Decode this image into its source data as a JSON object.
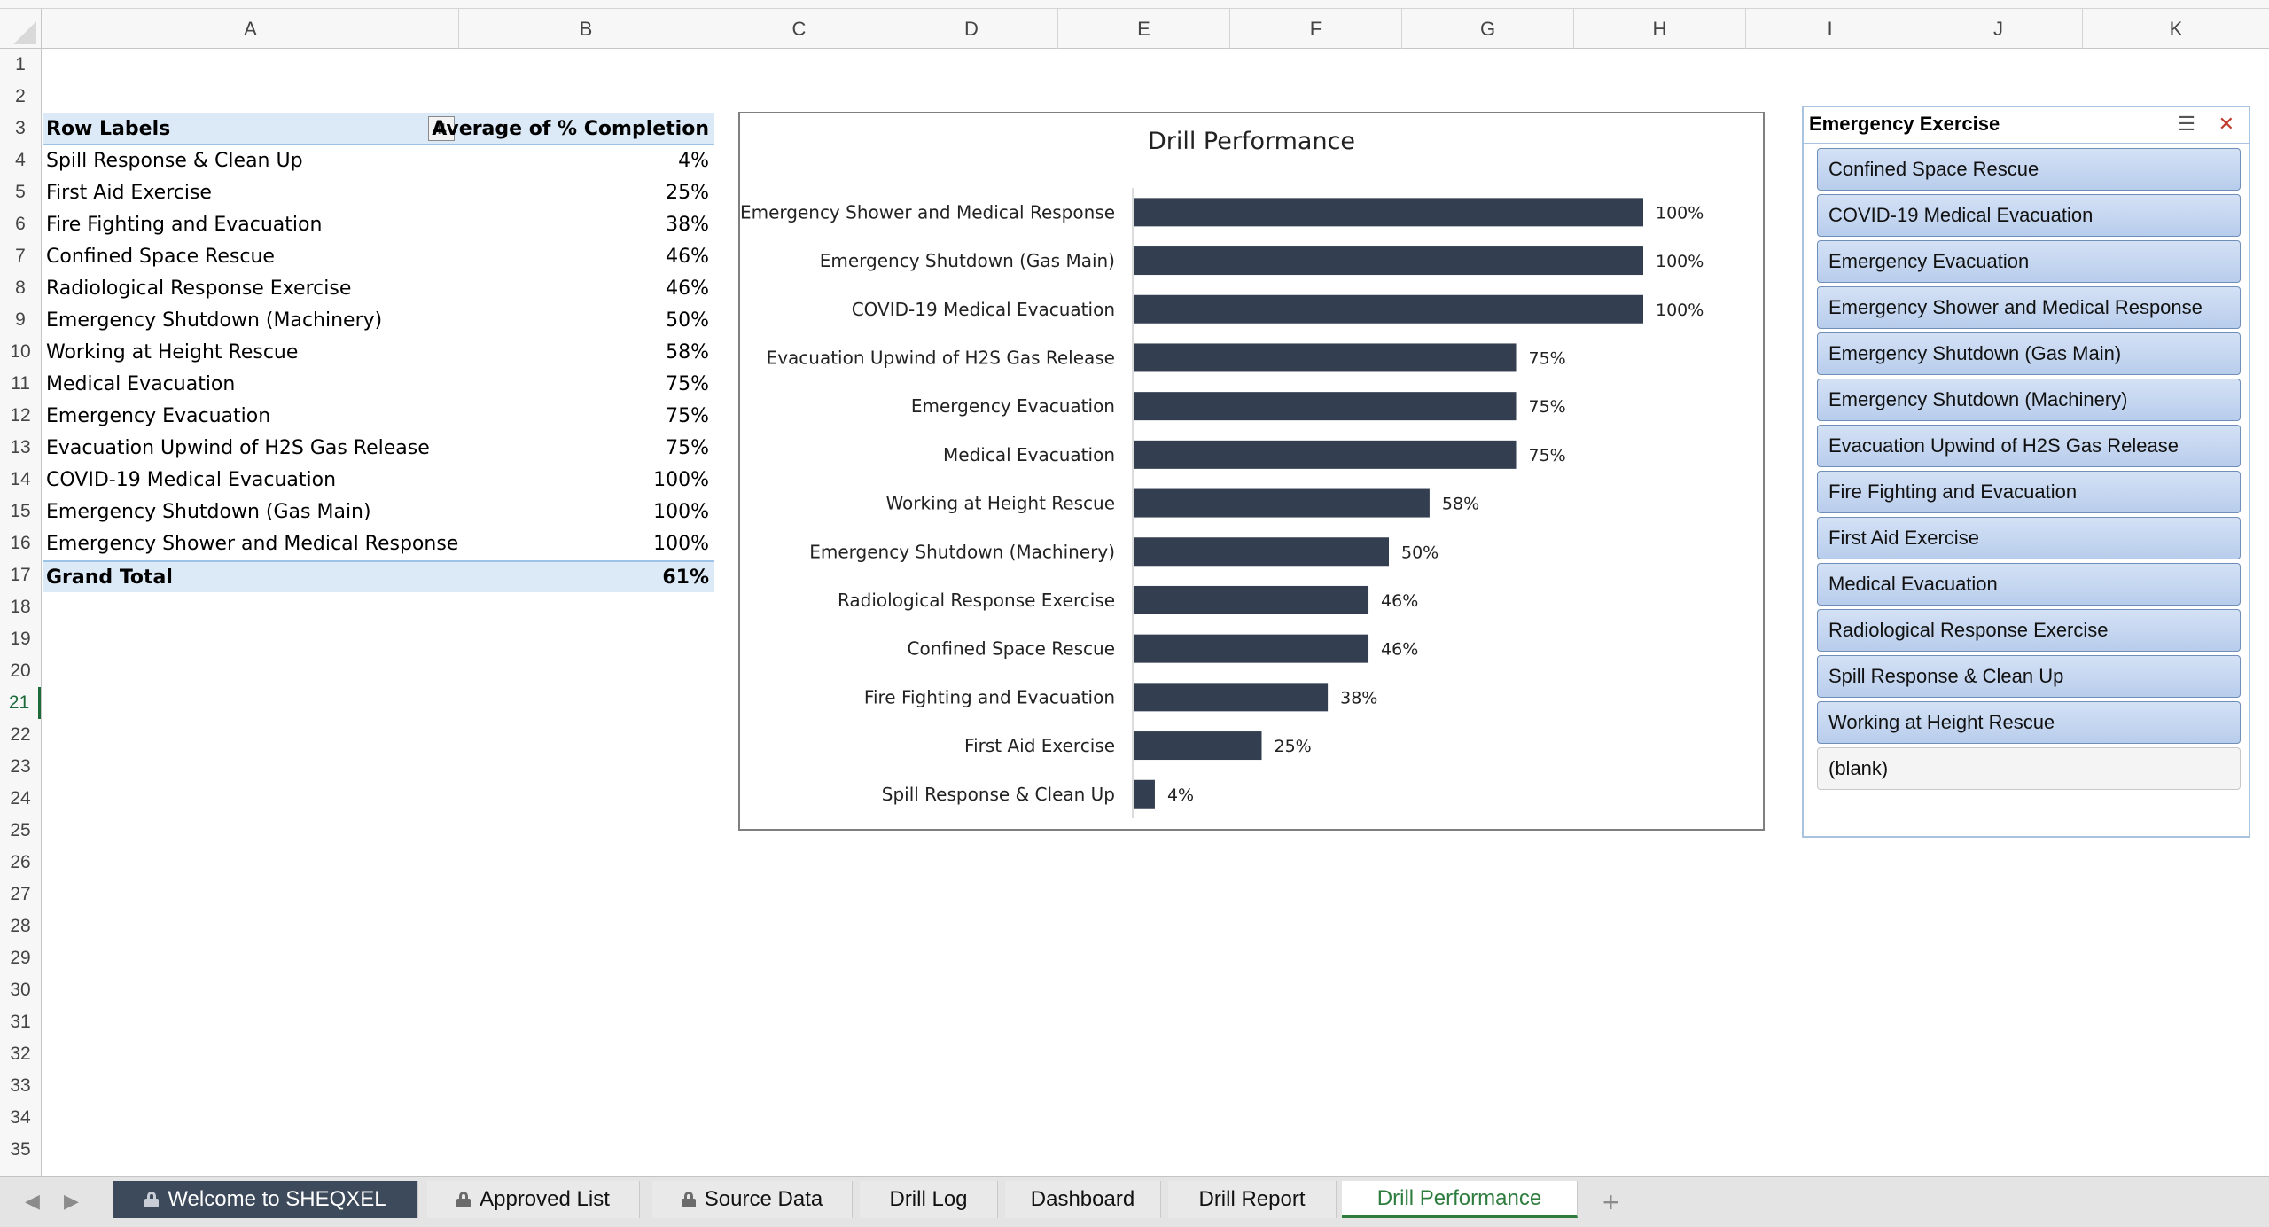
{
  "columns": [
    "A",
    "B",
    "C",
    "D",
    "E",
    "F",
    "G",
    "H",
    "I",
    "J",
    "K"
  ],
  "rows": [
    "1",
    "2",
    "3",
    "4",
    "5",
    "6",
    "7",
    "8",
    "9",
    "10",
    "11",
    "12",
    "13",
    "14",
    "15",
    "16",
    "17",
    "18",
    "19",
    "20",
    "21",
    "22",
    "23",
    "24",
    "25",
    "26",
    "27",
    "28",
    "29",
    "30",
    "31",
    "32",
    "33",
    "34",
    "35"
  ],
  "active_row": "21",
  "pivot": {
    "header_label": "Row Labels",
    "header_value": "Average of % Completion",
    "filter_icon": "sort-filter-icon",
    "items": [
      {
        "label": "Spill Response & Clean Up",
        "value": "4%"
      },
      {
        "label": "First Aid Exercise",
        "value": "25%"
      },
      {
        "label": "Fire Fighting and Evacuation",
        "value": "38%"
      },
      {
        "label": "Confined Space Rescue",
        "value": "46%"
      },
      {
        "label": "Radiological Response Exercise",
        "value": "46%"
      },
      {
        "label": "Emergency Shutdown (Machinery)",
        "value": "50%"
      },
      {
        "label": "Working at Height Rescue",
        "value": "58%"
      },
      {
        "label": "Medical Evacuation",
        "value": "75%"
      },
      {
        "label": "Emergency Evacuation",
        "value": "75%"
      },
      {
        "label": "Evacuation Upwind of H2S Gas Release",
        "value": "75%"
      },
      {
        "label": "COVID-19 Medical Evacuation",
        "value": "100%"
      },
      {
        "label": "Emergency Shutdown (Gas Main)",
        "value": "100%"
      },
      {
        "label": "Emergency Shower and Medical Response",
        "value": "100%"
      }
    ],
    "total_label": "Grand Total",
    "total_value": "61%"
  },
  "chart_data": {
    "type": "bar",
    "orientation": "horizontal",
    "title": "Drill Performance",
    "categories": [
      "Emergency Shower and Medical Response",
      "Emergency Shutdown (Gas Main)",
      "COVID-19 Medical Evacuation",
      "Evacuation Upwind of H2S Gas Release",
      "Emergency Evacuation",
      "Medical Evacuation",
      "Working at Height Rescue",
      "Emergency Shutdown (Machinery)",
      "Radiological Response Exercise",
      "Confined Space Rescue",
      "Fire Fighting and Evacuation",
      "First Aid Exercise",
      "Spill Response & Clean Up"
    ],
    "values": [
      100,
      100,
      100,
      75,
      75,
      75,
      58,
      50,
      46,
      46,
      38,
      25,
      4
    ],
    "data_labels": [
      "100%",
      "100%",
      "100%",
      "75%",
      "75%",
      "75%",
      "58%",
      "50%",
      "46%",
      "46%",
      "38%",
      "25%",
      "4%"
    ],
    "xlim": [
      0,
      100
    ],
    "bar_color": "#333f50",
    "grid": false,
    "legend": "none"
  },
  "slicer": {
    "title": "Emergency Exercise",
    "multi_select_icon": "multi-select-icon",
    "clear_filter_icon": "clear-filter-icon",
    "items": [
      "Confined Space Rescue",
      "COVID-19 Medical Evacuation",
      "Emergency Evacuation",
      "Emergency Shower and Medical Response",
      "Emergency Shutdown (Gas Main)",
      "Emergency Shutdown (Machinery)",
      "Evacuation Upwind of H2S Gas Release",
      "Fire Fighting and Evacuation",
      "First Aid Exercise",
      "Medical Evacuation",
      "Radiological Response Exercise",
      "Spill Response & Clean Up",
      "Working at Height Rescue",
      "(blank)"
    ]
  },
  "tabs": [
    {
      "label": "Welcome to SHEQXEL",
      "locked": true
    },
    {
      "label": "Approved List",
      "locked": true
    },
    {
      "label": "Source Data",
      "locked": true
    },
    {
      "label": "Drill Log",
      "locked": false
    },
    {
      "label": "Dashboard",
      "locked": false
    },
    {
      "label": "Drill Report",
      "locked": false
    },
    {
      "label": "Drill Performance",
      "locked": false,
      "active": true
    }
  ],
  "add_tab_label": "+"
}
